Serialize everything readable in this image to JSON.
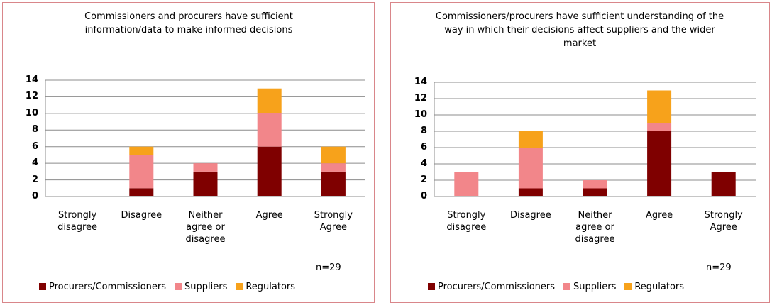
{
  "chart_data": [
    {
      "type": "bar",
      "stacked": true,
      "title": "Commissioners and procurers have sufficient information/data to make informed decisions",
      "categories": [
        "Strongly disagree",
        "Disagree",
        "Neither agree or disagree",
        "Agree",
        "Strongly Agree"
      ],
      "series": [
        {
          "name": "Procurers/Commissioners",
          "color": "#7f0000",
          "values": [
            0,
            1,
            3,
            6,
            3
          ]
        },
        {
          "name": "Suppliers",
          "color": "#f2868a",
          "values": [
            0,
            4,
            1,
            4,
            1
          ]
        },
        {
          "name": "Regulators",
          "color": "#f7a21b",
          "values": [
            0,
            1,
            0,
            3,
            2
          ]
        }
      ],
      "ylim": [
        0,
        14
      ],
      "yticks": [
        0,
        2,
        4,
        6,
        8,
        10,
        12,
        14
      ],
      "grid": true,
      "annotation": "n=29",
      "legend": "bottom"
    },
    {
      "type": "bar",
      "stacked": true,
      "title": "Commissioners/procurers have sufficient understanding of the way in which their decisions affect suppliers and the wider market",
      "categories": [
        "Strongly disagree",
        "Disagree",
        "Neither agree or disagree",
        "Agree",
        "Strongly Agree"
      ],
      "series": [
        {
          "name": "Procurers/Commissioners",
          "color": "#7f0000",
          "values": [
            0,
            1,
            1,
            8,
            3
          ]
        },
        {
          "name": "Suppliers",
          "color": "#f2868a",
          "values": [
            3,
            5,
            1,
            1,
            0
          ]
        },
        {
          "name": "Regulators",
          "color": "#f7a21b",
          "values": [
            0,
            2,
            0,
            4,
            0
          ]
        }
      ],
      "ylim": [
        0,
        14
      ],
      "yticks": [
        0,
        2,
        4,
        6,
        8,
        10,
        12,
        14
      ],
      "grid": true,
      "annotation": "n=29",
      "legend": "bottom"
    }
  ]
}
